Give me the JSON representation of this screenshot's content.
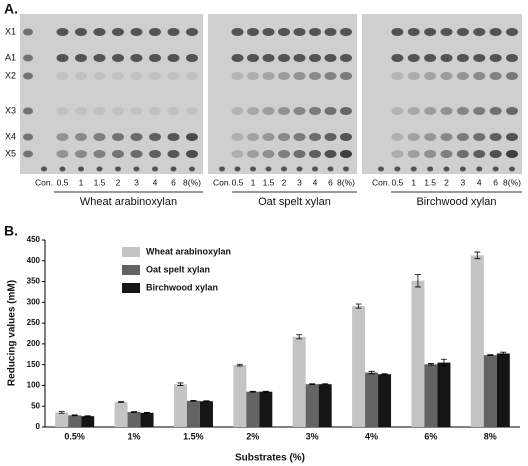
{
  "panel_a": {
    "label": "A.",
    "markers": [
      "X1",
      "A1",
      "X2",
      "X3",
      "X4",
      "X5"
    ],
    "plates": [
      {
        "caption": "Wheat arabinoxylan",
        "lanes": [
          "Con.",
          "0.5",
          "1",
          "1.5",
          "2",
          "3",
          "4",
          "6",
          "8(%)"
        ]
      },
      {
        "caption": "Oat spelt xylan",
        "lanes": [
          "Con.",
          "0.5",
          "1",
          "1.5",
          "2",
          "3",
          "4",
          "6",
          "8(%)"
        ]
      },
      {
        "caption": "Birchwood xylan",
        "lanes": [
          "Con.",
          "0.5",
          "1",
          "1.5",
          "2",
          "3",
          "4",
          "6",
          "8(%)"
        ]
      }
    ]
  },
  "panel_b": {
    "label": "B."
  },
  "chart_data": {
    "type": "bar",
    "x_label": "Substrates (%)",
    "y_label": "Reducing values (mM)",
    "categories": [
      "0.5%",
      "1%",
      "1.5%",
      "2%",
      "3%",
      "4%",
      "6%",
      "8%"
    ],
    "series": [
      {
        "name": "Wheat arabinoxylan",
        "color": "#c4c4c4",
        "values": [
          35,
          60,
          103,
          149,
          217,
          291,
          352,
          413
        ],
        "errors": [
          2,
          1,
          3,
          2,
          5,
          5,
          15,
          8
        ]
      },
      {
        "name": "Oat spelt xylan",
        "color": "#636363",
        "values": [
          28,
          36,
          63,
          85,
          103,
          131,
          151,
          173
        ],
        "errors": [
          1,
          1,
          1,
          1,
          1,
          3,
          2,
          1
        ]
      },
      {
        "name": "Birchwood xylan",
        "color": "#151515",
        "values": [
          26,
          34,
          62,
          85,
          103,
          127,
          155,
          177
        ],
        "errors": [
          1,
          1,
          1,
          1,
          1,
          1,
          8,
          3
        ]
      }
    ],
    "ylim": [
      0,
      450
    ],
    "yticks": [
      0,
      50,
      100,
      150,
      200,
      250,
      300,
      350,
      400,
      450
    ],
    "legend": "upper left"
  }
}
